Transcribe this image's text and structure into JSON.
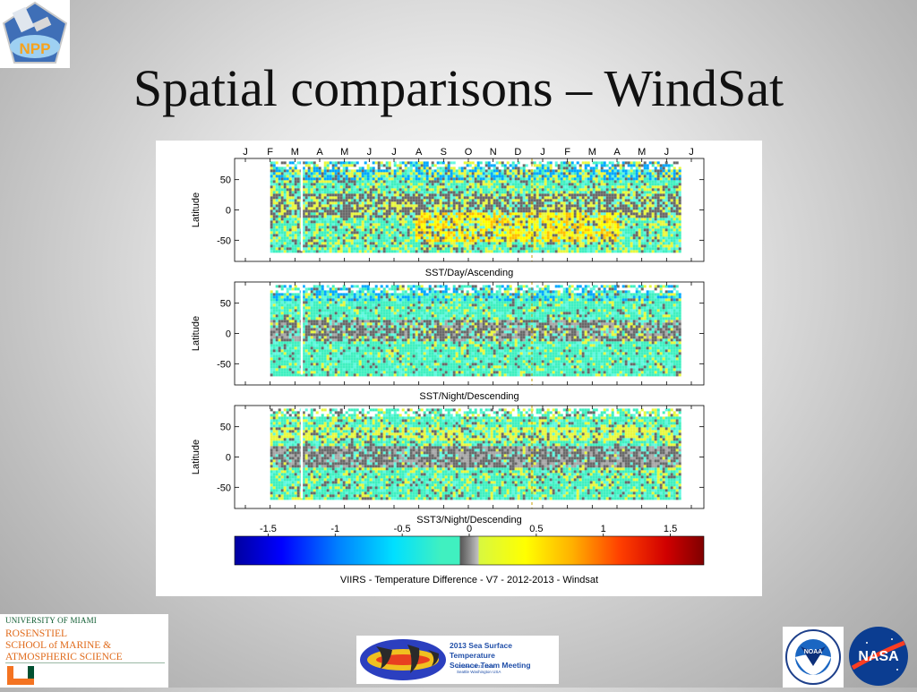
{
  "slide": {
    "title": "Spatial comparisons – WindSat",
    "colors": {
      "background": "#c8c8c8",
      "title": "#111111"
    }
  },
  "logos": {
    "npp": {
      "icon": "npp-mission-logo",
      "text": "NPP"
    },
    "university": {
      "icon": "university-of-miami-rsmas-logo",
      "line1": "UNIVERSITY OF MIAMI",
      "line2a": "ROSENSTIEL",
      "line2b": "SCHOOL of MARINE &",
      "line2c": "ATMOSPHERIC SCIENCE",
      "mark": "U"
    },
    "meeting": {
      "icon": "sst-meeting-globe-logo",
      "line1": "2013 Sea Surface Temperature",
      "line2": "Science Team Meeting",
      "line3": "October 29-31, 2013",
      "line4": "Seattle Washington  USA"
    },
    "noaa": {
      "icon": "noaa-logo",
      "text": "NOAA"
    },
    "nasa": {
      "icon": "nasa-logo",
      "text": "NASA"
    }
  },
  "chart_data": {
    "type": "heatmap",
    "x_months": [
      "J",
      "F",
      "M",
      "A",
      "M",
      "J",
      "J",
      "A",
      "S",
      "O",
      "N",
      "D",
      "J",
      "F",
      "M",
      "A",
      "M",
      "J",
      "J"
    ],
    "xrange": [
      "2012-01",
      "2013-07"
    ],
    "data_start": "2012-02",
    "data_end": "2013-07",
    "panels": [
      {
        "name": "SST/Day/Ascending",
        "ylabel": "Latitude",
        "yticks": [
          50,
          0,
          -50
        ],
        "ylim": [
          -85,
          85
        ],
        "pattern": "warm positive band in southern mid-latitudes; mixed cyan/yellow elsewhere"
      },
      {
        "name": "SST/Night/Descending",
        "ylabel": "Latitude",
        "yticks": [
          50,
          0,
          -50
        ],
        "ylim": [
          -85,
          85
        ],
        "pattern": "mostly cyan (slightly negative) with grey near-zero tropical band"
      },
      {
        "name": "SST3/Night/Descending",
        "ylabel": "Latitude",
        "yticks": [
          50,
          0,
          -50
        ],
        "ylim": [
          -85,
          85
        ],
        "pattern": "grey near-zero equatorial band with yellow features mid-latitudes"
      }
    ],
    "colorbar": {
      "min": -1.75,
      "max": 1.75,
      "tick_labels": [
        "-1.5",
        "-1",
        "-0.5",
        "0",
        "0.5",
        "1",
        "1.5"
      ],
      "ticks": [
        -1.5,
        -1,
        -0.5,
        0,
        0.5,
        1,
        1.5
      ],
      "colors": [
        "#0000a0",
        "#0000ff",
        "#0060ff",
        "#00b0ff",
        "#00e8ff",
        "#40f0c0",
        "#555555",
        "#999999",
        "#c0c0c0",
        "#d8f840",
        "#ffff00",
        "#ffc000",
        "#ff8000",
        "#ff3000",
        "#e00000",
        "#800000"
      ],
      "label": "VIIRS - Temperature Difference - V7 - 2012-2013 - Windsat"
    }
  }
}
